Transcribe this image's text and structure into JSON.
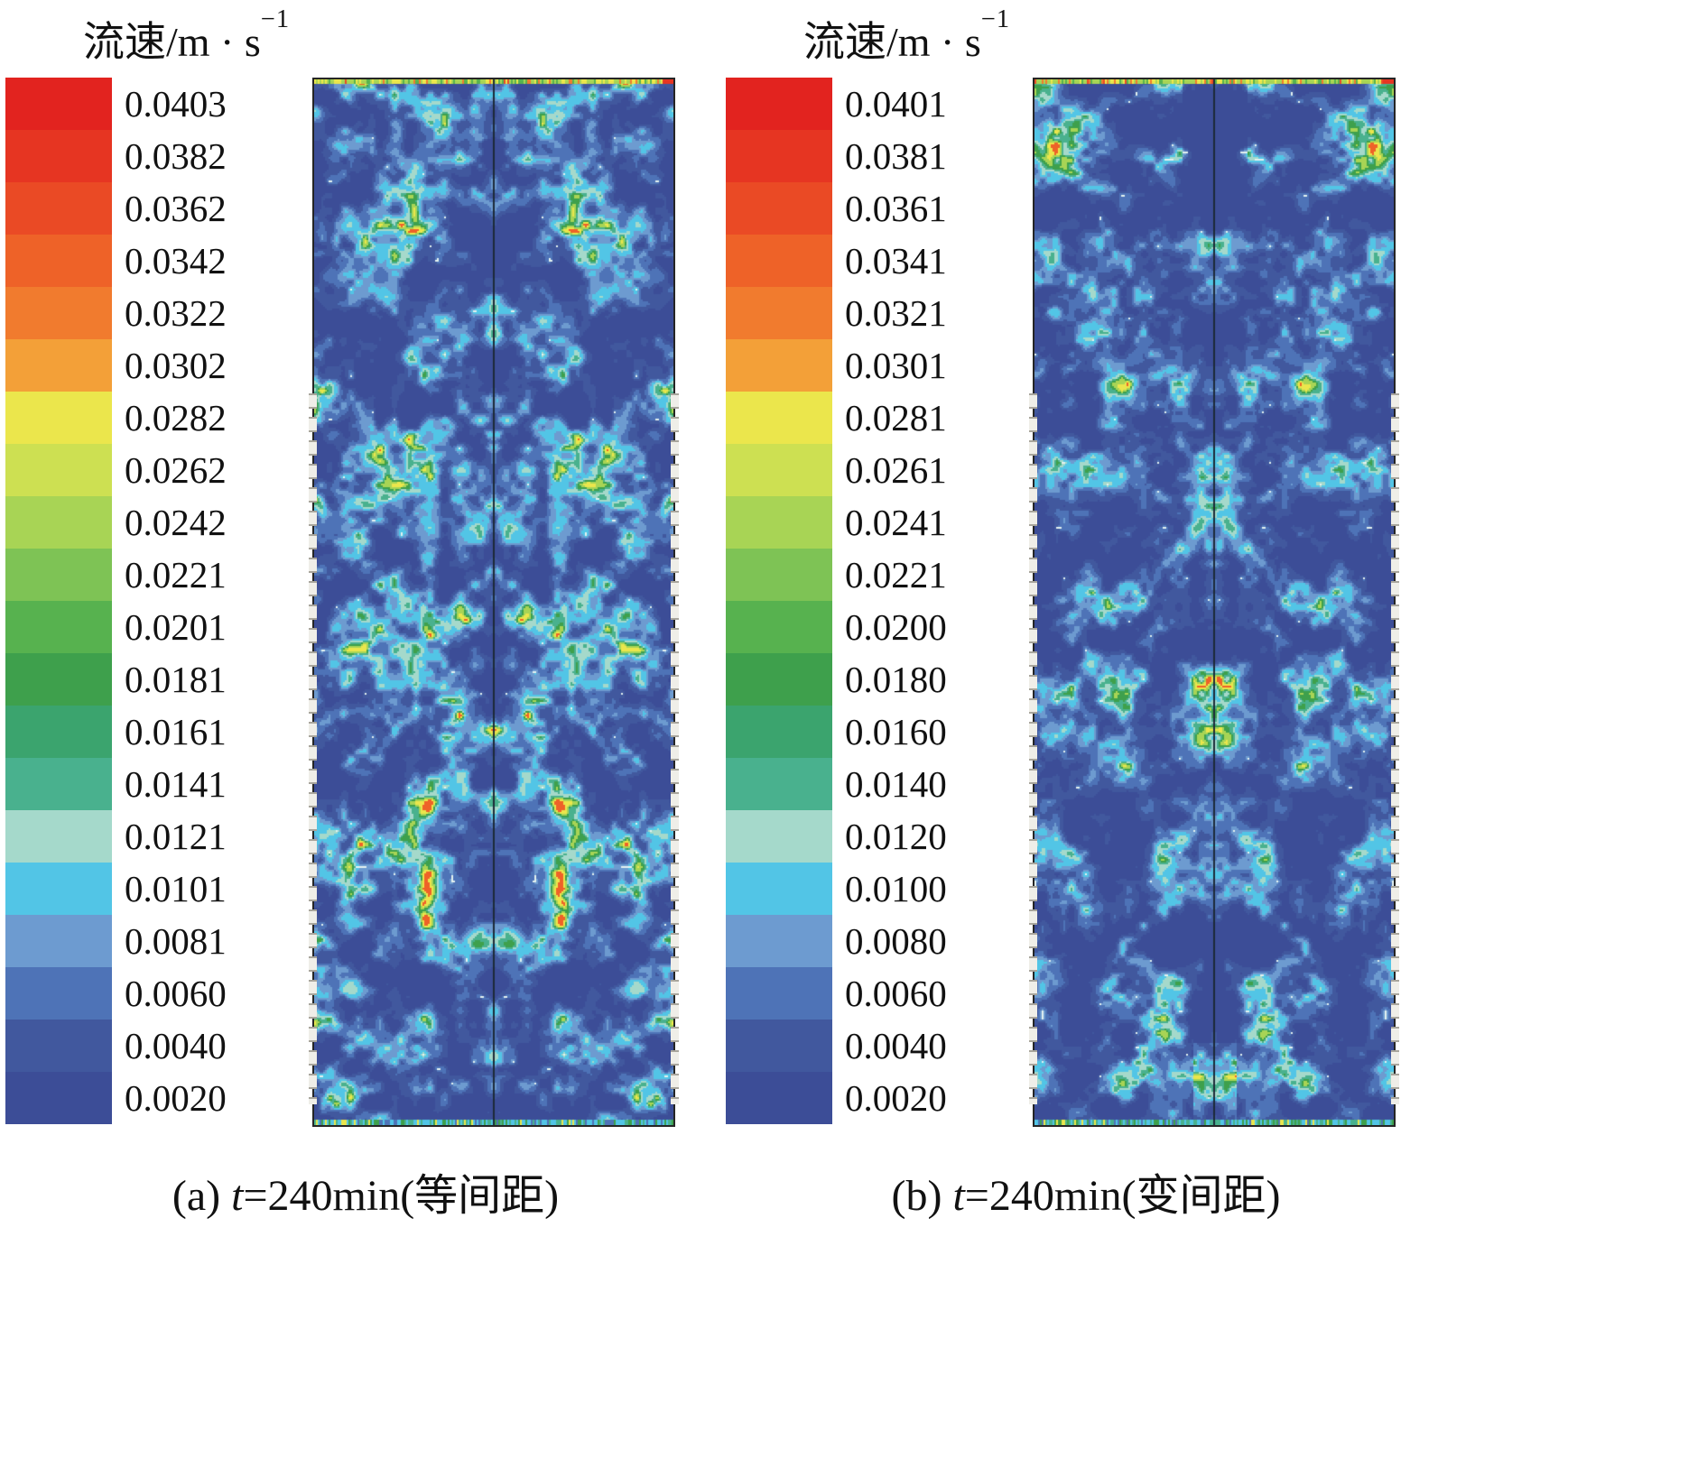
{
  "panels": [
    {
      "title_base": "流速/m · s",
      "title_sup": "−1",
      "levels": [
        "0.0403",
        "0.0382",
        "0.0362",
        "0.0342",
        "0.0322",
        "0.0302",
        "0.0282",
        "0.0262",
        "0.0242",
        "0.0221",
        "0.0201",
        "0.0181",
        "0.0161",
        "0.0141",
        "0.0121",
        "0.0101",
        "0.0081",
        "0.0060",
        "0.0040",
        "0.0020"
      ],
      "colors": [
        "#e2231f",
        "#e63522",
        "#ea4a25",
        "#ee6228",
        "#f17b2e",
        "#f3a038",
        "#ebe64c",
        "#cde052",
        "#a8d455",
        "#7ec355",
        "#57b24f",
        "#3ea04c",
        "#3ba46e",
        "#49b18e",
        "#a5d9cb",
        "#52c5e6",
        "#6d9bd0",
        "#4e73b7",
        "#41589e",
        "#3c4d97"
      ],
      "caption_pre": "(a) ",
      "caption_var": "t",
      "caption_post": "=240min(等间距)"
    },
    {
      "title_base": "流速/m · s",
      "title_sup": "−1",
      "levels": [
        "0.0401",
        "0.0381",
        "0.0361",
        "0.0341",
        "0.0321",
        "0.0301",
        "0.0281",
        "0.0261",
        "0.0241",
        "0.0221",
        "0.0200",
        "0.0180",
        "0.0160",
        "0.0140",
        "0.0120",
        "0.0100",
        "0.0080",
        "0.0060",
        "0.0040",
        "0.0020"
      ],
      "colors": [
        "#e2231f",
        "#e63522",
        "#ea4a25",
        "#ee6228",
        "#f17b2e",
        "#f3a038",
        "#ebe64c",
        "#cde052",
        "#a8d455",
        "#7ec355",
        "#57b24f",
        "#3ea04c",
        "#3ba46e",
        "#49b18e",
        "#a5d9cb",
        "#52c5e6",
        "#6d9bd0",
        "#4e73b7",
        "#41589e",
        "#3c4d97"
      ],
      "caption_pre": "(b) ",
      "caption_var": "t",
      "caption_post": "=240min(变间距)"
    }
  ],
  "chart_data": [
    {
      "type": "heatmap",
      "title": "流速/m·s⁻¹",
      "caption": "(a) t=240min(等间距)",
      "units": "m·s⁻¹",
      "legend_position": "left",
      "colorbar_levels": [
        0.0403,
        0.0382,
        0.0362,
        0.0342,
        0.0322,
        0.0302,
        0.0282,
        0.0262,
        0.0242,
        0.0221,
        0.0201,
        0.0181,
        0.0161,
        0.0141,
        0.0121,
        0.0101,
        0.0081,
        0.006,
        0.004,
        0.002
      ],
      "value_range": [
        0.002,
        0.0403
      ],
      "field_description": "Vertically symmetric speckled velocity-contour field; dominant values 0.002-0.012 m/s (dark/medium blue) with scattered cyan speckles ~0.010-0.014 m/s, sparse green/yellow spots, thin high-velocity green/yellow/red band along top inlet edge, mixed cyan/green band along bottom edge, vertical symmetry axis line at center, dashed module ticks along lower side walls"
    },
    {
      "type": "heatmap",
      "title": "流速/m·s⁻¹",
      "caption": "(b) t=240min(变间距)",
      "units": "m·s⁻¹",
      "legend_position": "left",
      "colorbar_levels": [
        0.0401,
        0.0381,
        0.0361,
        0.0341,
        0.0321,
        0.0301,
        0.0281,
        0.0261,
        0.0241,
        0.0221,
        0.02,
        0.018,
        0.016,
        0.014,
        0.012,
        0.01,
        0.008,
        0.006,
        0.004,
        0.002
      ],
      "value_range": [
        0.002,
        0.0401
      ],
      "field_description": "Vertically symmetric speckled velocity-contour field with slightly larger smooth dark-blue regions along the center column; dominant values 0.002-0.012 m/s, cyan speckles, sparse green/yellow spots, thin high-velocity band along top inlet edge, mixed band along bottom edge, center symmetry axis line, dashed module ticks along lower side walls"
    }
  ]
}
